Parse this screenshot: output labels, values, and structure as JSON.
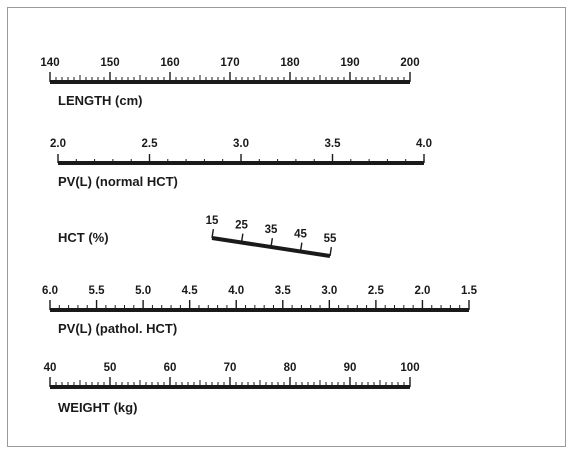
{
  "scales": {
    "length": {
      "title": "LENGTH (cm)",
      "ticks": [
        {
          "value": 140,
          "label": "140"
        },
        {
          "value": 150,
          "label": "150"
        },
        {
          "value": 160,
          "label": "160"
        },
        {
          "value": 170,
          "label": "170"
        },
        {
          "value": 180,
          "label": "180"
        },
        {
          "value": 190,
          "label": "190"
        },
        {
          "value": 200,
          "label": "200"
        }
      ],
      "range": [
        140,
        200
      ],
      "minor_step": 1
    },
    "pv_normal": {
      "title": "PV(L) (normal HCT)",
      "ticks": [
        {
          "value": 2.0,
          "label": "2.0"
        },
        {
          "value": 2.5,
          "label": "2.5"
        },
        {
          "value": 3.0,
          "label": "3.0"
        },
        {
          "value": 3.5,
          "label": "3.5"
        },
        {
          "value": 4.0,
          "label": "4.0"
        }
      ],
      "range": [
        2.0,
        4.0
      ],
      "minor_step": 0.1
    },
    "hct": {
      "title": "HCT (%)",
      "ticks": [
        {
          "value": 15,
          "label": "15"
        },
        {
          "value": 25,
          "label": "25"
        },
        {
          "value": 35,
          "label": "35"
        },
        {
          "value": 45,
          "label": "45"
        },
        {
          "value": 55,
          "label": "55"
        }
      ],
      "range": [
        15,
        55
      ],
      "minor_step": 10
    },
    "pv_pathol": {
      "title": "PV(L) (pathol. HCT)",
      "ticks": [
        {
          "value": 6.0,
          "label": "6.0"
        },
        {
          "value": 5.5,
          "label": "5.5"
        },
        {
          "value": 5.0,
          "label": "5.0"
        },
        {
          "value": 4.5,
          "label": "4.5"
        },
        {
          "value": 4.0,
          "label": "4.0"
        },
        {
          "value": 3.5,
          "label": "3.5"
        },
        {
          "value": 3.0,
          "label": "3.0"
        },
        {
          "value": 2.5,
          "label": "2.5"
        },
        {
          "value": 2.0,
          "label": "2.0"
        },
        {
          "value": 1.5,
          "label": "1.5"
        }
      ],
      "range": [
        6.0,
        1.5
      ],
      "minor_step": 0.1
    },
    "weight": {
      "title": "WEIGHT (kg)",
      "ticks": [
        {
          "value": 40,
          "label": "40"
        },
        {
          "value": 50,
          "label": "50"
        },
        {
          "value": 60,
          "label": "60"
        },
        {
          "value": 70,
          "label": "70"
        },
        {
          "value": 80,
          "label": "80"
        },
        {
          "value": 90,
          "label": "90"
        },
        {
          "value": 100,
          "label": "100"
        }
      ],
      "range": [
        40,
        100
      ],
      "minor_step": 1
    }
  },
  "colors": {
    "ink": "#1a1a1a",
    "frame": "#9a9a9a",
    "background": "#ffffff"
  }
}
